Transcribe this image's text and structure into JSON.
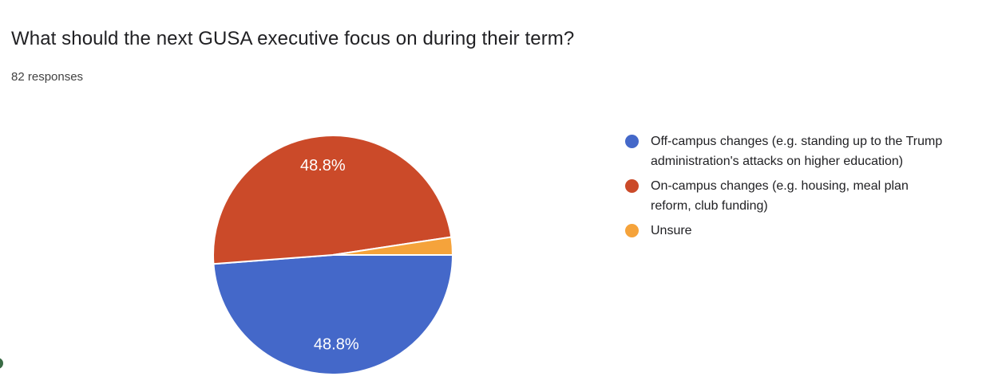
{
  "header": {
    "title": "What should the next GUSA executive focus on during their term?",
    "response_count": "82 responses"
  },
  "chart_data": {
    "type": "pie",
    "title": "What should the next GUSA executive focus on during their term?",
    "subtitle": "82 responses",
    "total_responses": 82,
    "categories": [
      "Off-campus changes (e.g. standing up to the Trump administration's attacks on higher education)",
      "On-campus changes (e.g. housing, meal plan reform, club funding)",
      "Unsure"
    ],
    "values": [
      48.8,
      48.8,
      2.4
    ],
    "slice_labels": [
      "48.8%",
      "48.8%",
      ""
    ],
    "colors": [
      "#4468C9",
      "#CB4A29",
      "#F5A33B"
    ],
    "start_angle_deg": 90,
    "direction": "clockwise",
    "legend_position": "right",
    "slice_label_color": "#ffffff",
    "separator_color": "#ffffff"
  },
  "edge_fragment": {
    "color": "#3A6B45"
  }
}
